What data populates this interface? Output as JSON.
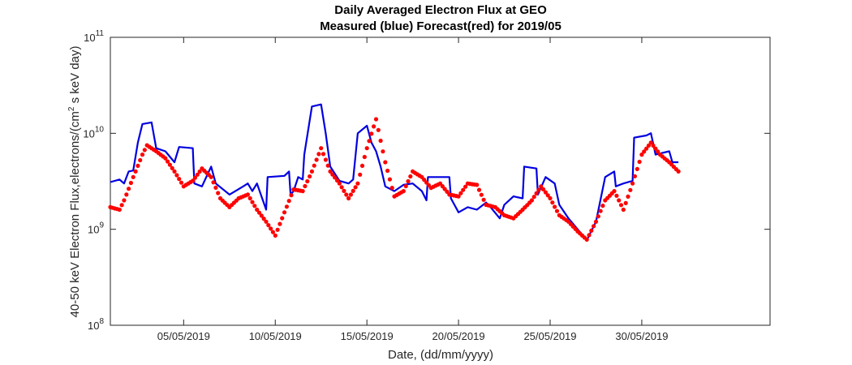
{
  "chart_data": {
    "type": "line",
    "title": "Daily Averaged Electron Flux at GEO",
    "subtitle": "Measured (blue) Forecast(red) for 2019/05",
    "xlabel": "Date, (dd/mm/yyyy)",
    "ylabel": "40-50 keV Electron Flux,electrons/(cm² s keV day)",
    "ylabel_parts": {
      "before": "40-50 keV Electron Flux,electrons/(cm",
      "sup": "2",
      "after": " s keV day)"
    },
    "yscale": "log",
    "ylim": [
      100000000,
      100000000000
    ],
    "xlim": [
      "2019-05-01",
      "2019-06-06"
    ],
    "grid": false,
    "x_ticks": [
      "2019-05-05",
      "2019-05-10",
      "2019-05-15",
      "2019-05-20",
      "2019-05-25",
      "2019-05-30"
    ],
    "x_tick_labels": [
      "05/05/2019",
      "10/05/2019",
      "15/05/2019",
      "20/05/2019",
      "25/05/2019",
      "30/05/2019"
    ],
    "y_ticks": [
      {
        "value": 100000000,
        "base": "10",
        "exp": "8"
      },
      {
        "value": 1000000000,
        "base": "10",
        "exp": "9"
      },
      {
        "value": 10000000000,
        "base": "10",
        "exp": "10"
      },
      {
        "value": 100000000000,
        "base": "10",
        "exp": "11"
      }
    ],
    "series": [
      {
        "style": "line",
        "color": "#0000e0",
        "points": [
          [
            "2019-05-01 00:00",
            3100000000.0
          ],
          [
            "2019-05-01 12:00",
            3300000000.0
          ],
          [
            "2019-05-01 18:00",
            3000000000.0
          ],
          [
            "2019-05-02 00:00",
            4000000000.0
          ],
          [
            "2019-05-02 06:00",
            4100000000.0
          ],
          [
            "2019-05-02 12:00",
            8000000000.0
          ],
          [
            "2019-05-02 18:00",
            12500000000.0
          ],
          [
            "2019-05-03 06:00",
            13000000000.0
          ],
          [
            "2019-05-03 12:00",
            7000000000.0
          ],
          [
            "2019-05-04 00:00",
            6500000000.0
          ],
          [
            "2019-05-04 12:00",
            5000000000.0
          ],
          [
            "2019-05-04 18:00",
            7200000000.0
          ],
          [
            "2019-05-05 12:00",
            7000000000.0
          ],
          [
            "2019-05-05 14:00",
            3000000000.0
          ],
          [
            "2019-05-06 00:00",
            2800000000.0
          ],
          [
            "2019-05-06 12:00",
            4500000000.0
          ],
          [
            "2019-05-06 18:00",
            3000000000.0
          ],
          [
            "2019-05-07 12:00",
            2300000000.0
          ],
          [
            "2019-05-08 06:00",
            2800000000.0
          ],
          [
            "2019-05-08 12:00",
            3000000000.0
          ],
          [
            "2019-05-08 18:00",
            2500000000.0
          ],
          [
            "2019-05-09 00:00",
            3000000000.0
          ],
          [
            "2019-05-09 12:00",
            1600000000.0
          ],
          [
            "2019-05-09 14:00",
            3500000000.0
          ],
          [
            "2019-05-10 12:00",
            3600000000.0
          ],
          [
            "2019-05-10 18:00",
            4000000000.0
          ],
          [
            "2019-05-10 20:00",
            2300000000.0
          ],
          [
            "2019-05-11 00:00",
            2500000000.0
          ],
          [
            "2019-05-11 06:00",
            3500000000.0
          ],
          [
            "2019-05-11 12:00",
            3300000000.0
          ],
          [
            "2019-05-11 14:00",
            6000000000.0
          ],
          [
            "2019-05-12 00:00",
            19000000000.0
          ],
          [
            "2019-05-12 12:00",
            20000000000.0
          ],
          [
            "2019-05-12 18:00",
            10000000000.0
          ],
          [
            "2019-05-13 00:00",
            4500000000.0
          ],
          [
            "2019-05-13 12:00",
            3200000000.0
          ],
          [
            "2019-05-14 00:00",
            3000000000.0
          ],
          [
            "2019-05-14 06:00",
            3300000000.0
          ],
          [
            "2019-05-14 12:00",
            10000000000.0
          ],
          [
            "2019-05-15 00:00",
            12000000000.0
          ],
          [
            "2019-05-15 06:00",
            8000000000.0
          ],
          [
            "2019-05-15 12:00",
            6500000000.0
          ],
          [
            "2019-05-15 18:00",
            4500000000.0
          ],
          [
            "2019-05-16 00:00",
            2800000000.0
          ],
          [
            "2019-05-16 12:00",
            2500000000.0
          ],
          [
            "2019-05-17 00:00",
            2900000000.0
          ],
          [
            "2019-05-17 12:00",
            3000000000.0
          ],
          [
            "2019-05-18 00:00",
            2500000000.0
          ],
          [
            "2019-05-18 06:00",
            2000000000.0
          ],
          [
            "2019-05-18 08:00",
            3500000000.0
          ],
          [
            "2019-05-19 12:00",
            3500000000.0
          ],
          [
            "2019-05-19 14:00",
            2100000000.0
          ],
          [
            "2019-05-20 00:00",
            1500000000.0
          ],
          [
            "2019-05-20 12:00",
            1700000000.0
          ],
          [
            "2019-05-21 00:00",
            1600000000.0
          ],
          [
            "2019-05-21 12:00",
            1900000000.0
          ],
          [
            "2019-05-21 18:00",
            1700000000.0
          ],
          [
            "2019-05-22 06:00",
            1300000000.0
          ],
          [
            "2019-05-22 12:00",
            1800000000.0
          ],
          [
            "2019-05-23 00:00",
            2200000000.0
          ],
          [
            "2019-05-23 12:00",
            2100000000.0
          ],
          [
            "2019-05-23 14:00",
            4500000000.0
          ],
          [
            "2019-05-24 06:00",
            4300000000.0
          ],
          [
            "2019-05-24 08:00",
            2300000000.0
          ],
          [
            "2019-05-24 18:00",
            3500000000.0
          ],
          [
            "2019-05-25 06:00",
            3000000000.0
          ],
          [
            "2019-05-25 12:00",
            1800000000.0
          ],
          [
            "2019-05-26 00:00",
            1300000000.0
          ],
          [
            "2019-05-26 12:00",
            1000000000.0
          ],
          [
            "2019-05-27 00:00",
            770000000.0
          ],
          [
            "2019-05-27 12:00",
            1200000000.0
          ],
          [
            "2019-05-28 00:00",
            3500000000.0
          ],
          [
            "2019-05-28 12:00",
            4000000000.0
          ],
          [
            "2019-05-28 14:00",
            2800000000.0
          ],
          [
            "2019-05-29 00:00",
            3000000000.0
          ],
          [
            "2019-05-29 12:00",
            3200000000.0
          ],
          [
            "2019-05-29 14:00",
            9000000000.0
          ],
          [
            "2019-05-30 06:00",
            9500000000.0
          ],
          [
            "2019-05-30 12:00",
            10000000000.0
          ],
          [
            "2019-05-30 18:00",
            6000000000.0
          ],
          [
            "2019-05-31 12:00",
            6500000000.0
          ],
          [
            "2019-05-31 16:00",
            5000000000.0
          ],
          [
            "2019-06-01 00:00",
            5000000000.0
          ]
        ]
      },
      {
        "style": "dots",
        "color": "#ff0000",
        "points": [
          [
            "2019-05-01 00:00",
            1700000000.0
          ],
          [
            "2019-05-01 12:00",
            1600000000.0
          ],
          [
            "2019-05-01 18:00",
            2000000000.0
          ],
          [
            "2019-05-02 06:00",
            3500000000.0
          ],
          [
            "2019-05-02 18:00",
            6000000000.0
          ],
          [
            "2019-05-03 00:00",
            7500000000.0
          ],
          [
            "2019-05-03 12:00",
            6500000000.0
          ],
          [
            "2019-05-04 00:00",
            5500000000.0
          ],
          [
            "2019-05-04 12:00",
            4000000000.0
          ],
          [
            "2019-05-05 00:00",
            2800000000.0
          ],
          [
            "2019-05-05 12:00",
            3200000000.0
          ],
          [
            "2019-05-06 00:00",
            4300000000.0
          ],
          [
            "2019-05-06 12:00",
            3500000000.0
          ],
          [
            "2019-05-07 00:00",
            2100000000.0
          ],
          [
            "2019-05-07 12:00",
            1700000000.0
          ],
          [
            "2019-05-08 00:00",
            2100000000.0
          ],
          [
            "2019-05-08 12:00",
            2300000000.0
          ],
          [
            "2019-05-09 00:00",
            1600000000.0
          ],
          [
            "2019-05-09 12:00",
            1200000000.0
          ],
          [
            "2019-05-10 00:00",
            860000000.0
          ],
          [
            "2019-05-10 12:00",
            1500000000.0
          ],
          [
            "2019-05-11 00:00",
            2600000000.0
          ],
          [
            "2019-05-11 12:00",
            2500000000.0
          ],
          [
            "2019-05-12 00:00",
            4000000000.0
          ],
          [
            "2019-05-12 12:00",
            7000000000.0
          ],
          [
            "2019-05-13 00:00",
            4000000000.0
          ],
          [
            "2019-05-13 12:00",
            3000000000.0
          ],
          [
            "2019-05-14 00:00",
            2100000000.0
          ],
          [
            "2019-05-14 12:00",
            3000000000.0
          ],
          [
            "2019-05-15 00:00",
            7000000000.0
          ],
          [
            "2019-05-15 12:00",
            14000000000.0
          ],
          [
            "2019-05-16 00:00",
            5000000000.0
          ],
          [
            "2019-05-16 12:00",
            2200000000.0
          ],
          [
            "2019-05-17 00:00",
            2500000000.0
          ],
          [
            "2019-05-17 12:00",
            4000000000.0
          ],
          [
            "2019-05-18 00:00",
            3500000000.0
          ],
          [
            "2019-05-18 12:00",
            2700000000.0
          ],
          [
            "2019-05-19 00:00",
            3000000000.0
          ],
          [
            "2019-05-19 12:00",
            2300000000.0
          ],
          [
            "2019-05-20 00:00",
            2200000000.0
          ],
          [
            "2019-05-20 12:00",
            3000000000.0
          ],
          [
            "2019-05-21 00:00",
            2900000000.0
          ],
          [
            "2019-05-21 12:00",
            1800000000.0
          ],
          [
            "2019-05-22 00:00",
            1700000000.0
          ],
          [
            "2019-05-22 12:00",
            1400000000.0
          ],
          [
            "2019-05-23 00:00",
            1300000000.0
          ],
          [
            "2019-05-23 12:00",
            1600000000.0
          ],
          [
            "2019-05-24 00:00",
            2000000000.0
          ],
          [
            "2019-05-24 12:00",
            2800000000.0
          ],
          [
            "2019-05-25 00:00",
            2100000000.0
          ],
          [
            "2019-05-25 12:00",
            1400000000.0
          ],
          [
            "2019-05-26 00:00",
            1200000000.0
          ],
          [
            "2019-05-26 12:00",
            950000000.0
          ],
          [
            "2019-05-27 00:00",
            780000000.0
          ],
          [
            "2019-05-27 12:00",
            1200000000.0
          ],
          [
            "2019-05-28 00:00",
            2000000000.0
          ],
          [
            "2019-05-28 12:00",
            2500000000.0
          ],
          [
            "2019-05-29 00:00",
            1600000000.0
          ],
          [
            "2019-05-29 12:00",
            3000000000.0
          ],
          [
            "2019-05-30 00:00",
            6000000000.0
          ],
          [
            "2019-05-30 12:00",
            8000000000.0
          ],
          [
            "2019-05-31 00:00",
            6000000000.0
          ],
          [
            "2019-05-31 12:00",
            5000000000.0
          ],
          [
            "2019-06-01 00:00",
            4000000000.0
          ]
        ]
      }
    ]
  }
}
